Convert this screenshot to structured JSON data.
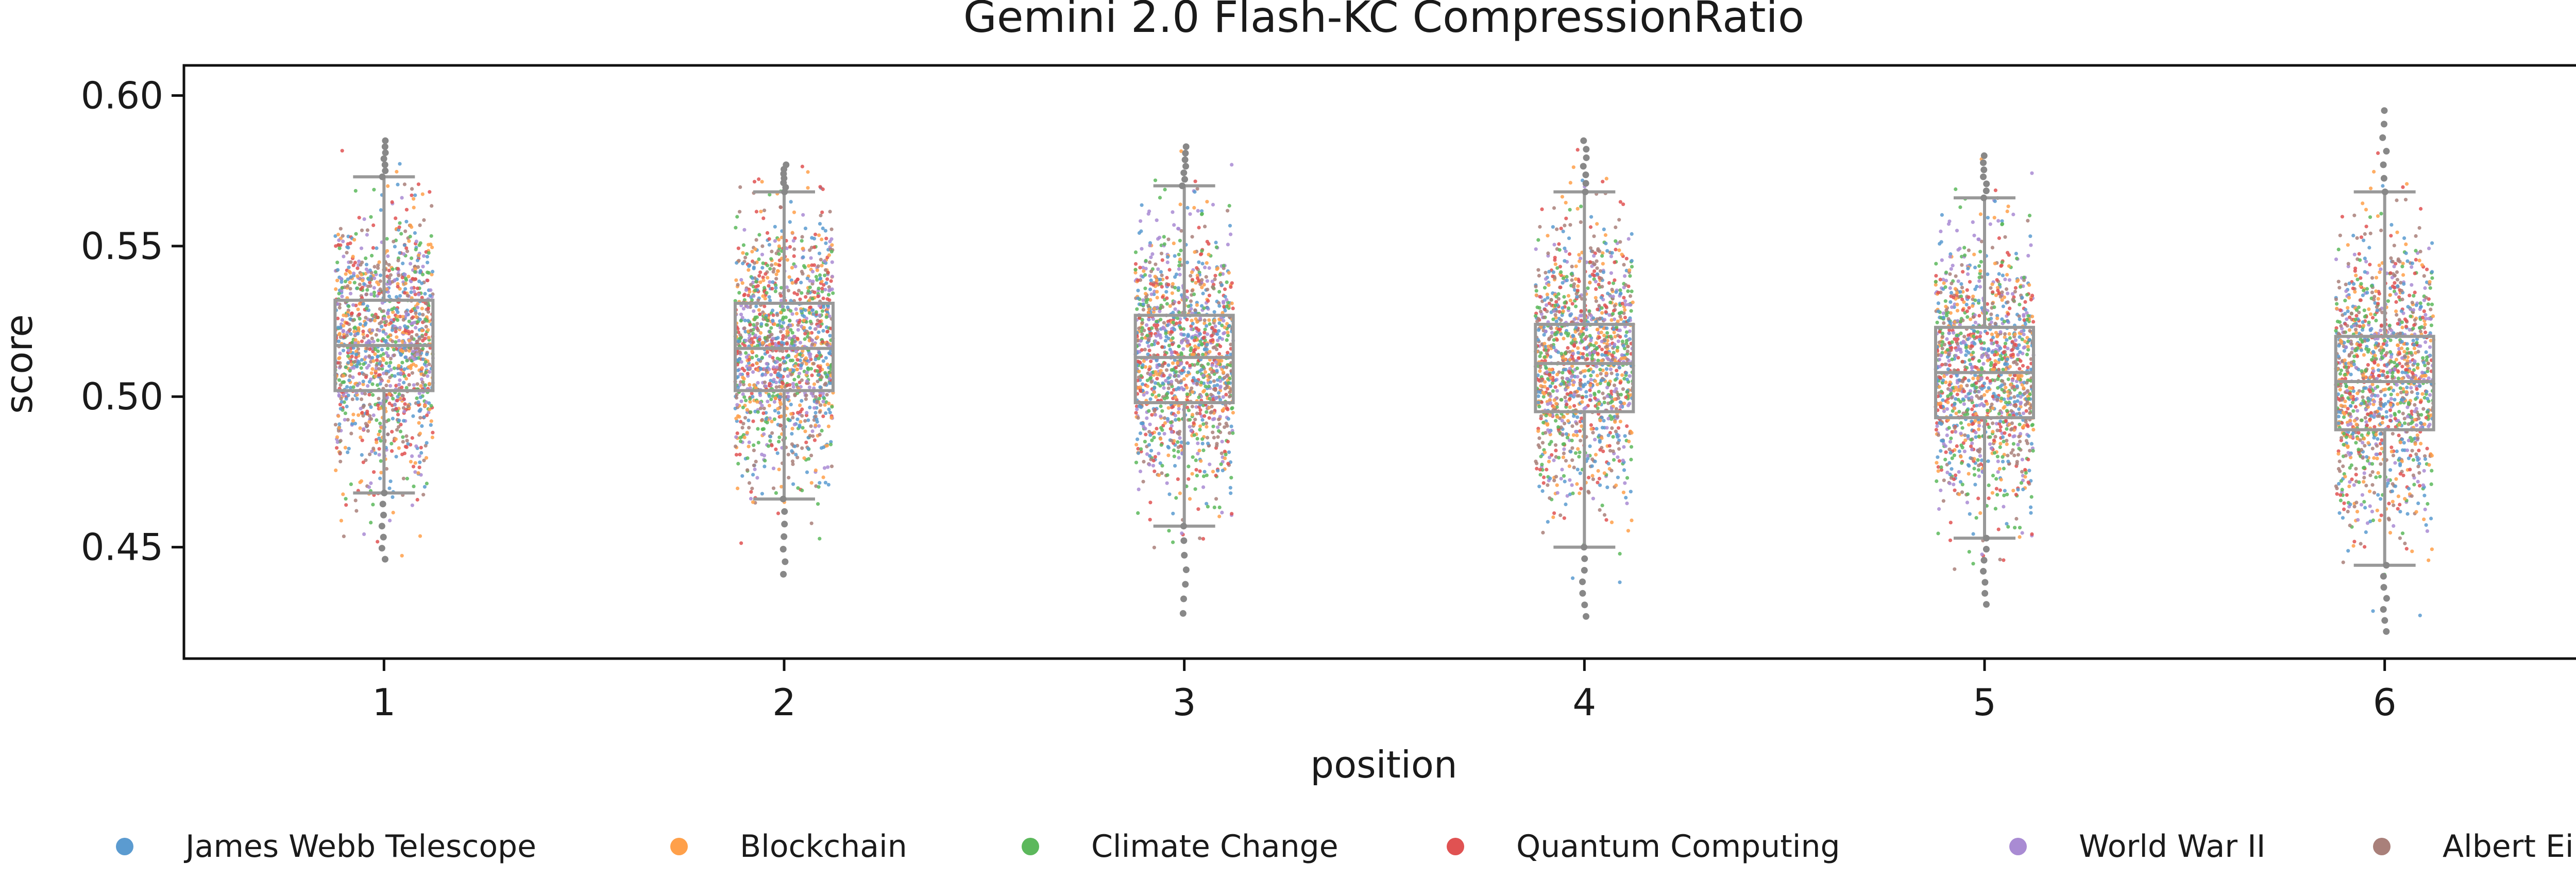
{
  "chart_data": {
    "type": "box",
    "title": "Gemini 2.0 Flash-KC CompressionRatio",
    "xlabel": "position",
    "ylabel": "score",
    "categories": [
      "1",
      "2",
      "3",
      "4",
      "5",
      "6"
    ],
    "ylim": [
      0.413,
      0.61
    ],
    "yticks": [
      0.45,
      0.5,
      0.55,
      0.6
    ],
    "ytick_labels": [
      "0.45",
      "0.50",
      "0.55",
      "0.60"
    ],
    "grid": false,
    "legend_position": "bottom",
    "boxes": [
      {
        "position": "1",
        "q1": 0.502,
        "median": 0.517,
        "q3": 0.532,
        "whisker_low": 0.468,
        "whisker_high": 0.573,
        "min": 0.446,
        "max": 0.585
      },
      {
        "position": "2",
        "q1": 0.502,
        "median": 0.516,
        "q3": 0.531,
        "whisker_low": 0.466,
        "whisker_high": 0.568,
        "min": 0.441,
        "max": 0.577
      },
      {
        "position": "3",
        "q1": 0.498,
        "median": 0.513,
        "q3": 0.527,
        "whisker_low": 0.457,
        "whisker_high": 0.57,
        "min": 0.428,
        "max": 0.583
      },
      {
        "position": "4",
        "q1": 0.495,
        "median": 0.511,
        "q3": 0.524,
        "whisker_low": 0.45,
        "whisker_high": 0.568,
        "min": 0.427,
        "max": 0.585
      },
      {
        "position": "5",
        "q1": 0.493,
        "median": 0.508,
        "q3": 0.523,
        "whisker_low": 0.453,
        "whisker_high": 0.566,
        "min": 0.431,
        "max": 0.58
      },
      {
        "position": "6",
        "q1": 0.489,
        "median": 0.505,
        "q3": 0.52,
        "whisker_low": 0.444,
        "whisker_high": 0.568,
        "min": 0.422,
        "max": 0.595
      }
    ],
    "series": [
      {
        "name": "James Webb Telescope",
        "color": "#5b9bd0"
      },
      {
        "name": "Blockchain",
        "color": "#ffa04a"
      },
      {
        "name": "Climate Change",
        "color": "#5cb85c"
      },
      {
        "name": "Quantum Computing",
        "color": "#e05252"
      },
      {
        "name": "World War II",
        "color": "#a98bd3"
      },
      {
        "name": "Albert Einstein",
        "color": "#a9807a"
      }
    ],
    "box_color": "#999999",
    "outlier_color": "#888888"
  }
}
